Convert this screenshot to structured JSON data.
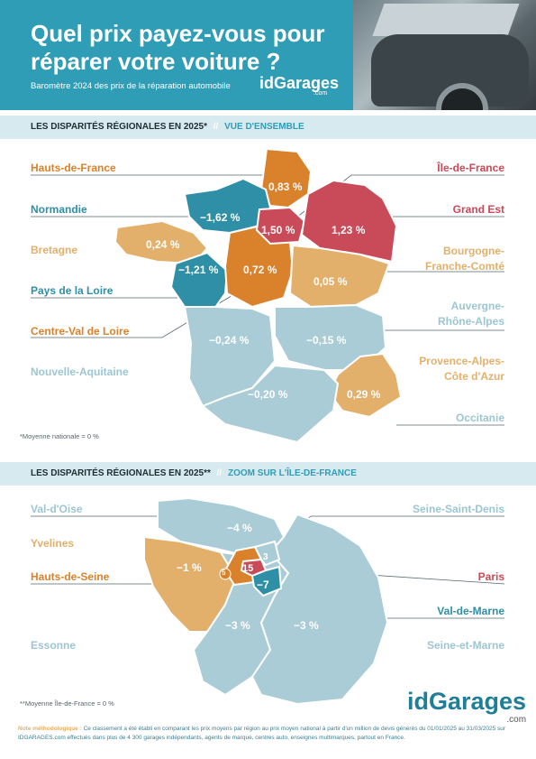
{
  "header": {
    "title_line1": "Quel prix payez-vous pour",
    "title_line2": "réparer votre voiture ?",
    "subtitle": "Baromètre 2024 des prix de la réparation automobile",
    "logo_small": "idGarages",
    "logo_small_com": ".com"
  },
  "section1": {
    "heading": "LES DISPARITÉS RÉGIONALES EN 2025*",
    "separator": "//",
    "highlight": "VUE D'ENSEMBLE",
    "regions": [
      {
        "name": "Hauts-de-France",
        "value": "0,83 %"
      },
      {
        "name": "Normandie",
        "value": "−1,62 %"
      },
      {
        "name": "Bretagne",
        "value": "0,24 %"
      },
      {
        "name": "Pays de la Loire",
        "value": "−1,21 %"
      },
      {
        "name": "Centre-Val de Loire",
        "value": "0,72 %"
      },
      {
        "name": "Nouvelle-Aquitaine",
        "value": "−0,24 %"
      },
      {
        "name": "Île-de-France",
        "value": "1,50 %"
      },
      {
        "name": "Grand Est",
        "value": "1,23 %"
      },
      {
        "name": "Bourgogne-Franche-Comté",
        "value": "0,05 %"
      },
      {
        "name": "Auvergne-Rhône-Alpes",
        "value": "−0,15 %"
      },
      {
        "name": "Provence-Alpes-Côte d'Azur",
        "value": "0,29 %"
      },
      {
        "name": "Occitanie",
        "value": "−0,20 %"
      }
    ],
    "labels": {
      "bfc_line1": "Bourgogne-",
      "bfc_line2": "Franche-Comté",
      "ara_line1": "Auvergne-",
      "ara_line2": "Rhône-Alpes",
      "paca_line1": "Provence-Alpes-",
      "paca_line2": "Côte d'Azur"
    },
    "footnote": "*Moyenne nationale = 0 %"
  },
  "section2": {
    "heading": "LES DISPARITÉS RÉGIONALES EN 2025**",
    "separator": "//",
    "highlight": "ZOOM SUR L'ÎLE-DE-FRANCE",
    "departments": [
      {
        "name": "Val-d'Oise",
        "value": "−4 %"
      },
      {
        "name": "Yvelines",
        "value": "−1 %"
      },
      {
        "name": "Hauts-de-Seine",
        "value": "5"
      },
      {
        "name": "Essonne",
        "value": "−3 %"
      },
      {
        "name": "Seine-Saint-Denis",
        "value": "3"
      },
      {
        "name": "Paris",
        "value": "15"
      },
      {
        "name": "Val-de-Marne",
        "value": "−7"
      },
      {
        "name": "Seine-et-Marne",
        "value": "−3 %"
      }
    ],
    "footnote": "**Moyenne Île-de-France = 0 %"
  },
  "footer": {
    "logo": "idGarages",
    "logo_com": ".com",
    "method_title": "Note méthodologique :",
    "method_text": "Ce classement a été établi en comparant les prix moyens par région au prix moyen national à partir d'un million de devis générés du 01/01/2025 au 31/03/2025 sur IDGARAGES.com effectués dans plus de 4 300 garages indépendants, agents de marque, centres auto, enseignes multimarques, partout en France."
  },
  "colors": {
    "teal": "#2e8fa6",
    "light": "#a9ccd6",
    "sand": "#e3b06b",
    "orange": "#d9822b",
    "red": "#c94a58"
  }
}
